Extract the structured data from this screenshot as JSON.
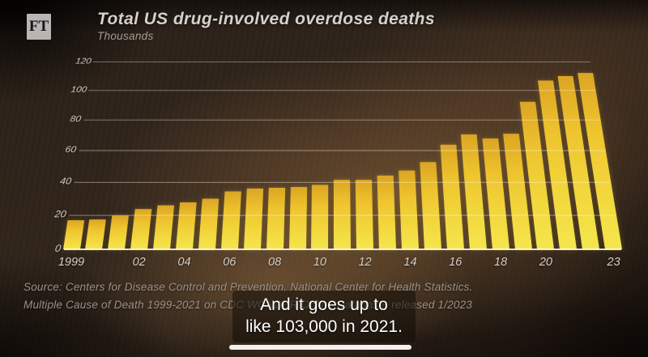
{
  "brand": {
    "logo_text": "FT"
  },
  "chart_data": {
    "type": "bar",
    "title": "Total US drug-involved overdose deaths",
    "ylabel": "Thousands",
    "categories": [
      1999,
      2000,
      2001,
      2002,
      2003,
      2004,
      2005,
      2006,
      2007,
      2008,
      2009,
      2010,
      2011,
      2012,
      2013,
      2014,
      2015,
      2016,
      2017,
      2018,
      2019,
      2020,
      2021,
      2022,
      2023
    ],
    "values": [
      16.8,
      17.4,
      19.4,
      23.5,
      25.8,
      27.4,
      29.8,
      34.4,
      36.0,
      36.4,
      37.0,
      38.3,
      41.3,
      41.5,
      44.0,
      47.1,
      52.4,
      63.6,
      70.2,
      67.4,
      70.6,
      91.8,
      106.7,
      109.7,
      111.8
    ],
    "x_tick_labels": [
      "1999",
      "02",
      "04",
      "06",
      "08",
      "10",
      "12",
      "14",
      "16",
      "18",
      "20",
      "23"
    ],
    "y_ticks": [
      0,
      20,
      40,
      60,
      80,
      100,
      120
    ],
    "ylim": [
      0,
      120
    ],
    "grid": true,
    "legend_position": "none",
    "bar_color": "#eec42f"
  },
  "source": {
    "line1": "Source: Centers for Disease Control and Prevention, National Center for Health Statistics.",
    "line2": "Multiple Cause of Death 1999-2021 on CDC WONDER Online Database, released 1/2023"
  },
  "caption": {
    "line1": "And it goes up to",
    "line2": "like 103,000 in 2021."
  }
}
